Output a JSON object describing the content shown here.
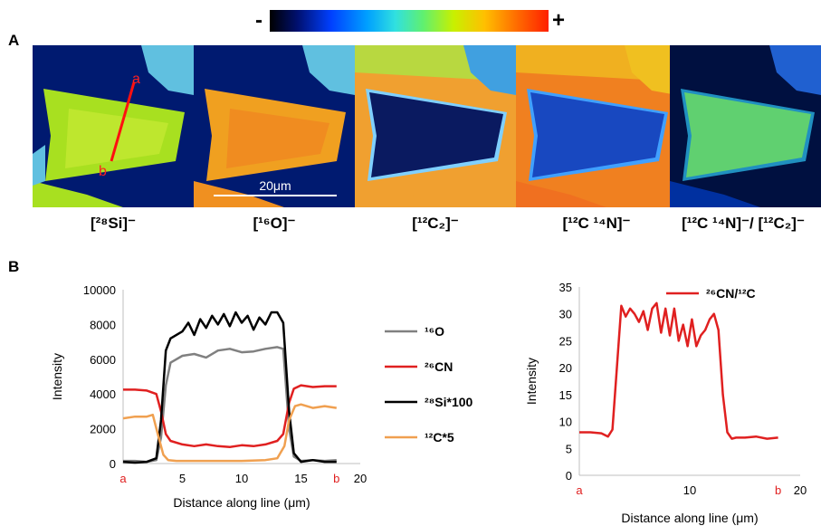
{
  "panel_a_label": "A",
  "panel_b_label": "B",
  "colorbar": {
    "minus": "-",
    "plus": "+",
    "color_low": "#000000",
    "color_high": "#ff2000"
  },
  "images": [
    {
      "name": "si28",
      "label": "[²⁸Si]⁻",
      "base": "#a8e020",
      "inner": "#c0e830",
      "mid": "#60c0e0",
      "dark": "#001a70"
    },
    {
      "name": "o16",
      "label": "[¹⁶O]⁻",
      "base": "#f0a020",
      "inner": "#f09020",
      "mid": "#60c0e0",
      "dark": "#001a70"
    },
    {
      "name": "c2",
      "label": "[¹²C₂]⁻",
      "base": "#f0a030",
      "inner": "#0a1a60",
      "mid": "#a0e040",
      "dark": "#f0a030"
    },
    {
      "name": "cn",
      "label": "[¹²C ¹⁴N]⁻",
      "base": "#f08020",
      "inner": "#1848c0",
      "mid": "#f0c020",
      "dark": "#f08020"
    },
    {
      "name": "ratio",
      "label": "[¹²C ¹⁴N]⁻/ [¹²C₂]⁻",
      "base": "#001040",
      "inner": "#60d070",
      "mid": "#2060d0",
      "dark": "#001040"
    }
  ],
  "line_markers": {
    "a": "a",
    "b": "b"
  },
  "scalebar_label": "20μm",
  "chart_data": [
    {
      "type": "line",
      "xlabel": "Distance along line (μm)",
      "ylabel": "Intensity",
      "xlim": [
        0,
        20
      ],
      "ylim": [
        0,
        10000
      ],
      "xticks": [
        "",
        "5",
        "10",
        "15",
        "20"
      ],
      "yticks": [
        "0",
        "2000",
        "4000",
        "6000",
        "8000",
        "10000"
      ],
      "x_endpoint_labels": {
        "a": "a",
        "b": "b"
      },
      "legend_position": "right",
      "series": [
        {
          "name": "¹⁶O",
          "color": "#808080",
          "x": [
            0,
            1,
            2,
            2.8,
            3.2,
            3.6,
            4,
            5,
            6,
            7,
            8,
            9,
            10,
            11,
            12,
            13,
            13.5,
            14,
            14.4,
            15,
            16,
            17,
            18
          ],
          "y": [
            150,
            150,
            100,
            200,
            1500,
            4500,
            5800,
            6200,
            6300,
            6100,
            6500,
            6600,
            6400,
            6450,
            6600,
            6700,
            6600,
            2000,
            400,
            150,
            200,
            150,
            200
          ]
        },
        {
          "name": "²⁶CN",
          "color": "#e02020",
          "x": [
            0,
            1,
            2,
            2.8,
            3.2,
            3.6,
            4,
            5,
            6,
            7,
            8,
            9,
            10,
            11,
            12,
            13,
            13.5,
            14,
            14.4,
            15,
            16,
            17,
            18
          ],
          "y": [
            4250,
            4250,
            4200,
            4000,
            3000,
            1700,
            1300,
            1100,
            1000,
            1100,
            1000,
            950,
            1050,
            1000,
            1100,
            1300,
            1700,
            3500,
            4300,
            4500,
            4400,
            4450,
            4450
          ]
        },
        {
          "name": "²⁸Si*100",
          "color": "#000000",
          "x": [
            0,
            1,
            2,
            2.8,
            3.2,
            3.6,
            4,
            5,
            5.5,
            6,
            6.5,
            7,
            7.5,
            8,
            8.5,
            9,
            9.5,
            10,
            10.5,
            11,
            11.5,
            12,
            12.5,
            13,
            13.5,
            14,
            14.4,
            15,
            16,
            17,
            18
          ],
          "y": [
            100,
            50,
            100,
            300,
            2500,
            6500,
            7200,
            7600,
            8100,
            7400,
            8300,
            7800,
            8500,
            8000,
            8600,
            7900,
            8700,
            8100,
            8500,
            7700,
            8400,
            8000,
            8700,
            8700,
            8100,
            3000,
            600,
            100,
            200,
            100,
            100
          ]
        },
        {
          "name": "¹²C*5",
          "color": "#f0a050",
          "x": [
            0,
            1,
            2,
            2.5,
            3,
            3.4,
            3.8,
            4.5,
            6,
            8,
            10,
            12,
            13,
            13.6,
            14,
            14.5,
            15,
            16,
            17,
            18
          ],
          "y": [
            2600,
            2700,
            2700,
            2800,
            1500,
            500,
            200,
            150,
            150,
            150,
            150,
            200,
            300,
            1000,
            2500,
            3300,
            3400,
            3200,
            3300,
            3200
          ]
        }
      ]
    },
    {
      "type": "line",
      "xlabel": "Distance along line (μm)",
      "ylabel": "Intensity",
      "xlim": [
        0,
        20
      ],
      "ylim": [
        0,
        35
      ],
      "xticks": [
        "",
        "10",
        "20"
      ],
      "yticks": [
        "0",
        "5",
        "10",
        "15",
        "20",
        "25",
        "30",
        "35"
      ],
      "x_endpoint_labels": {
        "a": "a",
        "b": "b"
      },
      "legend_position": "top-right",
      "series": [
        {
          "name": "²⁶CN/¹²C",
          "color": "#e02020",
          "x": [
            0,
            1,
            2,
            2.6,
            3,
            3.4,
            3.8,
            4.2,
            4.6,
            5,
            5.4,
            5.8,
            6.2,
            6.6,
            7,
            7.4,
            7.8,
            8.2,
            8.6,
            9,
            9.4,
            9.8,
            10.2,
            10.6,
            11,
            11.4,
            11.8,
            12.2,
            12.6,
            13,
            13.4,
            13.8,
            14.2,
            15,
            16,
            17,
            18
          ],
          "y": [
            8,
            8,
            7.8,
            7.2,
            8.5,
            20,
            31.5,
            29.5,
            31,
            30,
            28.5,
            30.5,
            27,
            31,
            32,
            26.5,
            31,
            26,
            31,
            25,
            28,
            24,
            29,
            24,
            26,
            27,
            29,
            30,
            27,
            15,
            8,
            6.8,
            7,
            7,
            7.2,
            6.8,
            7
          ]
        }
      ]
    }
  ]
}
